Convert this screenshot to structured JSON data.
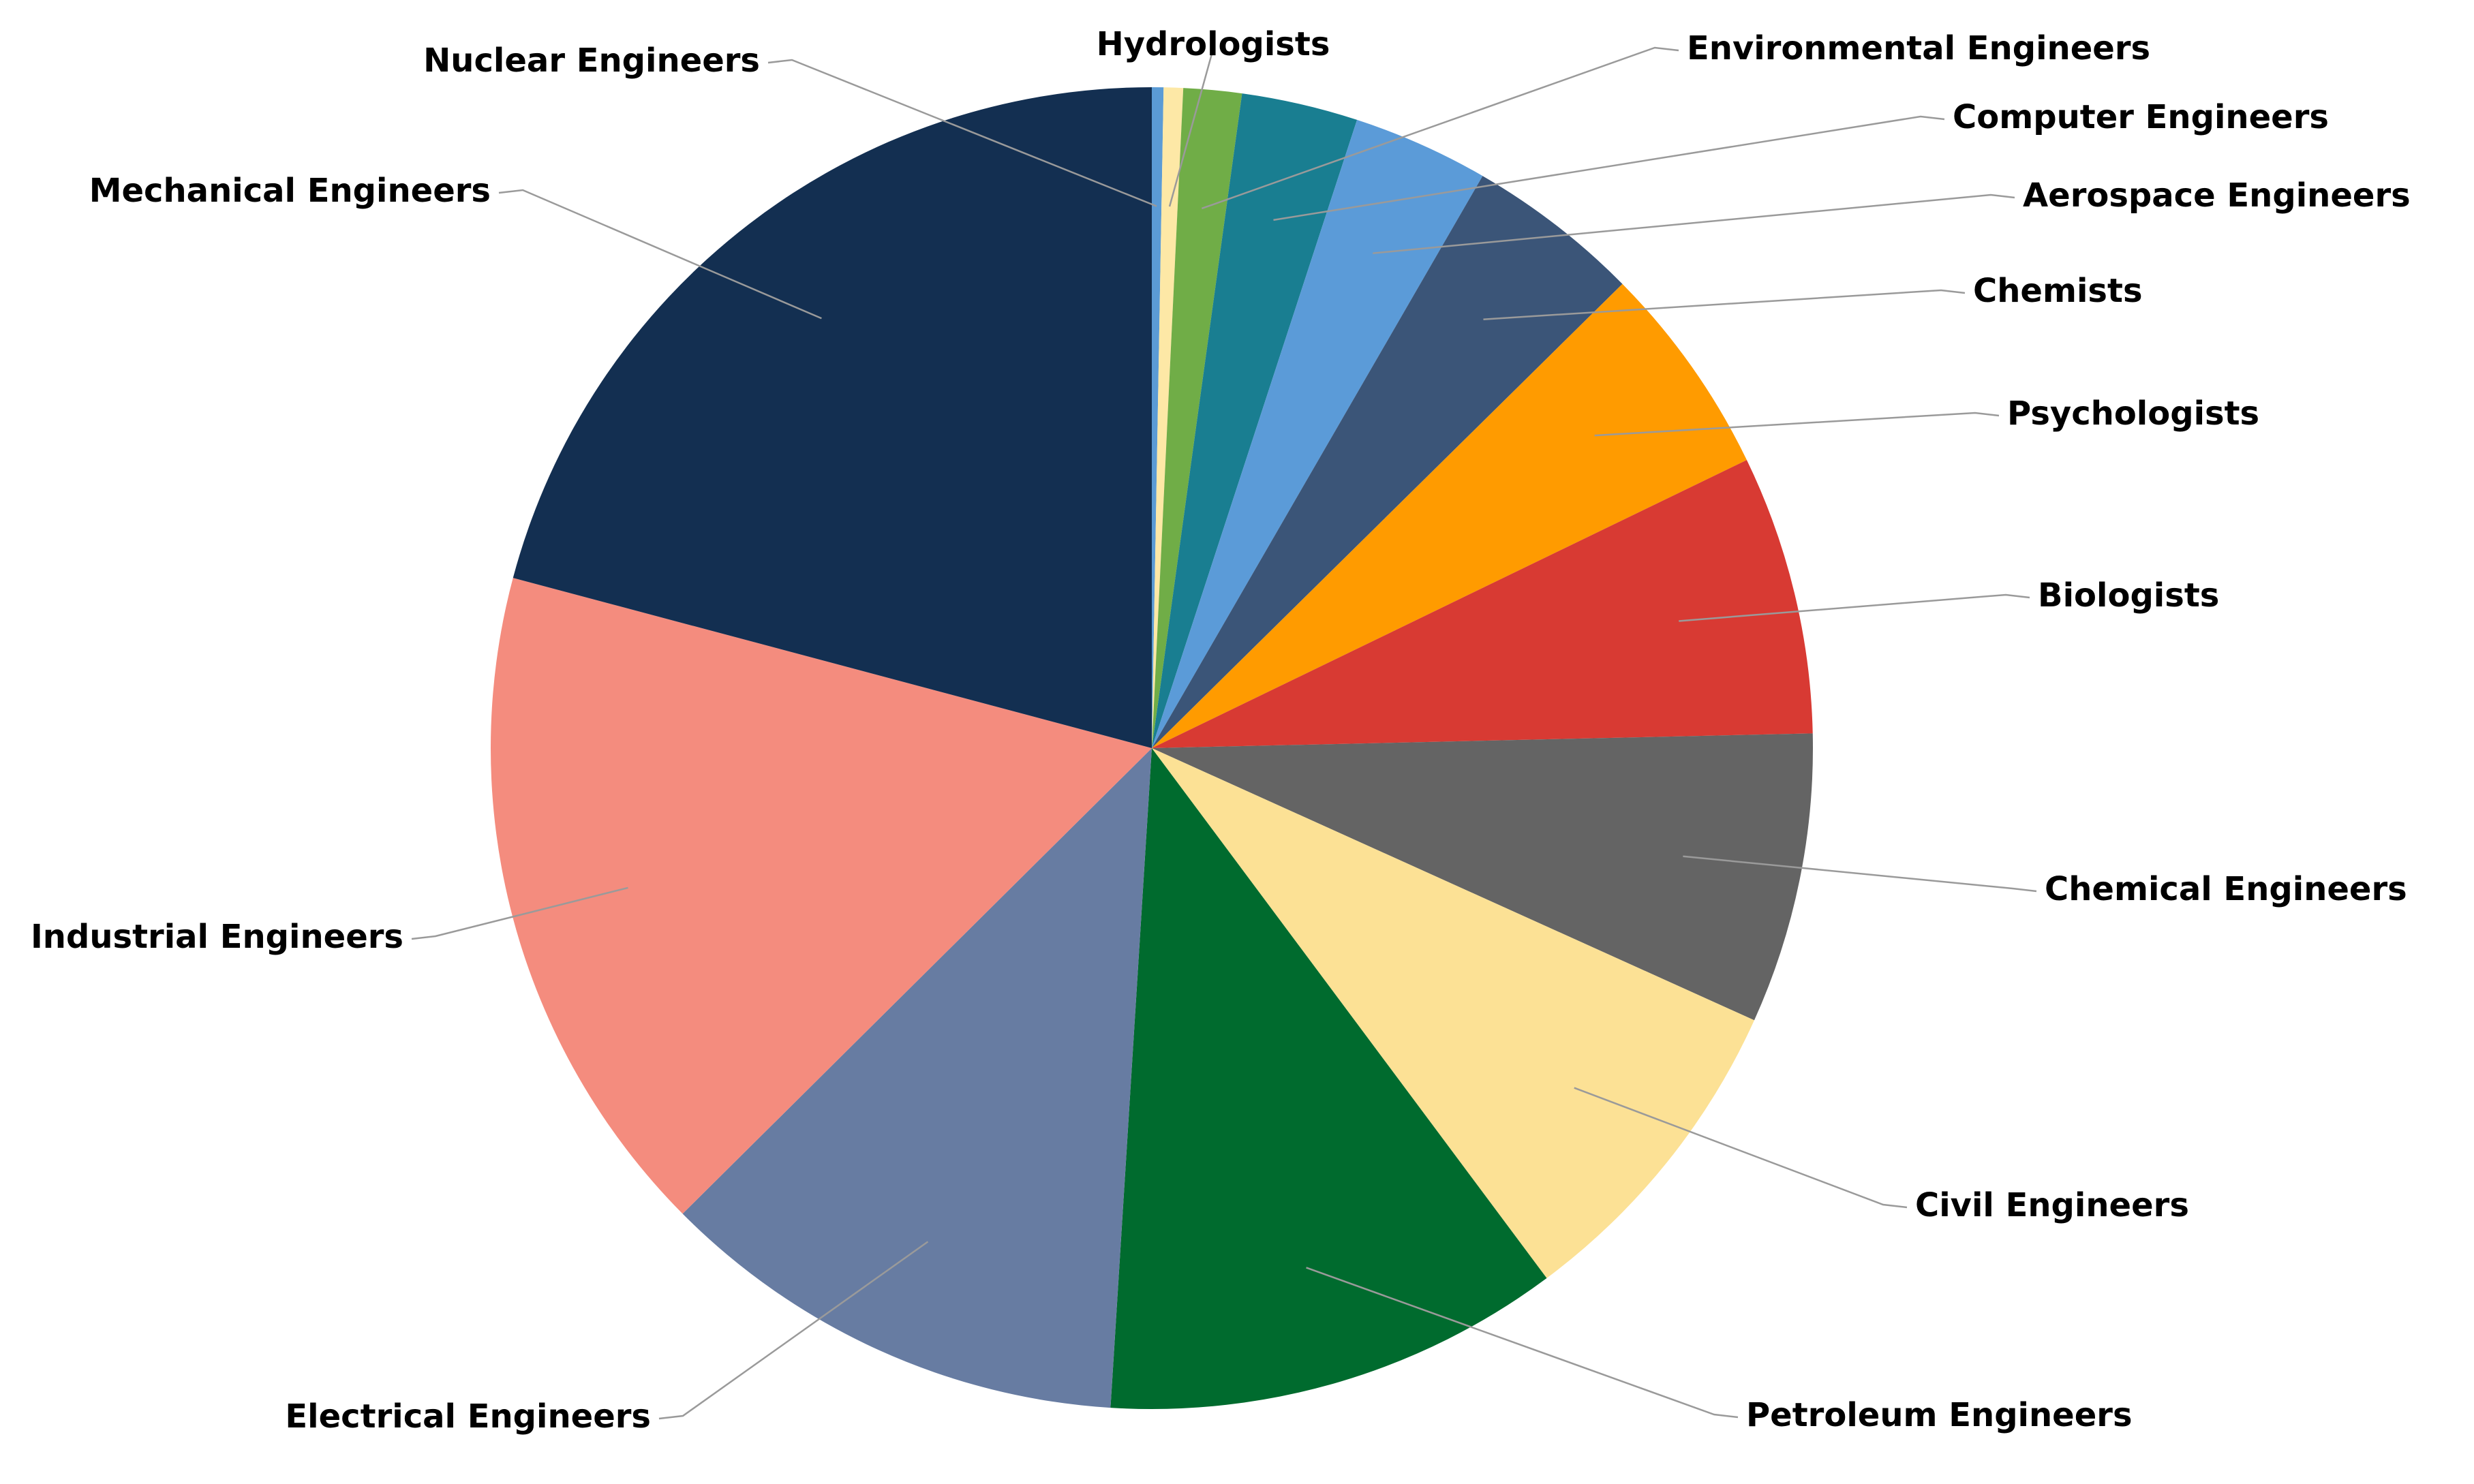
{
  "chart_data": {
    "type": "pie",
    "title": "",
    "start_angle_deg": 90,
    "direction": "clockwise",
    "slices": [
      {
        "label": "Nuclear Engineers",
        "value": 0.3,
        "color": "#5b9bd5"
      },
      {
        "label": "Hydrologists",
        "value": 0.5,
        "color": "#fde8a6"
      },
      {
        "label": "Environmental Engineers",
        "value": 1.5,
        "color": "#70ad47"
      },
      {
        "label": "Computer Engineers",
        "value": 3.0,
        "color": "#197e91"
      },
      {
        "label": "Aerospace Engineers",
        "value": 3.5,
        "color": "#5b9bd8"
      },
      {
        "label": "Chemists",
        "value": 4.5,
        "color": "#3b5578"
      },
      {
        "label": "Psychologists",
        "value": 5.5,
        "color": "#ff9b00"
      },
      {
        "label": "Biologists",
        "value": 7.2,
        "color": "#d83a33"
      },
      {
        "label": "Chemical Engineers",
        "value": 7.5,
        "color": "#646464"
      },
      {
        "label": "Civil Engineers",
        "value": 8.5,
        "color": "#fce195"
      },
      {
        "label": "Petroleum Engineers",
        "value": 11.8,
        "color": "#006b2e"
      },
      {
        "label": "Electrical Engineers",
        "value": 12.2,
        "color": "#677ca2"
      },
      {
        "label": "Industrial Engineers",
        "value": 17.5,
        "color": "#f48c7e"
      },
      {
        "label": "Mechanical Engineers",
        "value": 22.0,
        "color": "#132f51"
      }
    ]
  }
}
